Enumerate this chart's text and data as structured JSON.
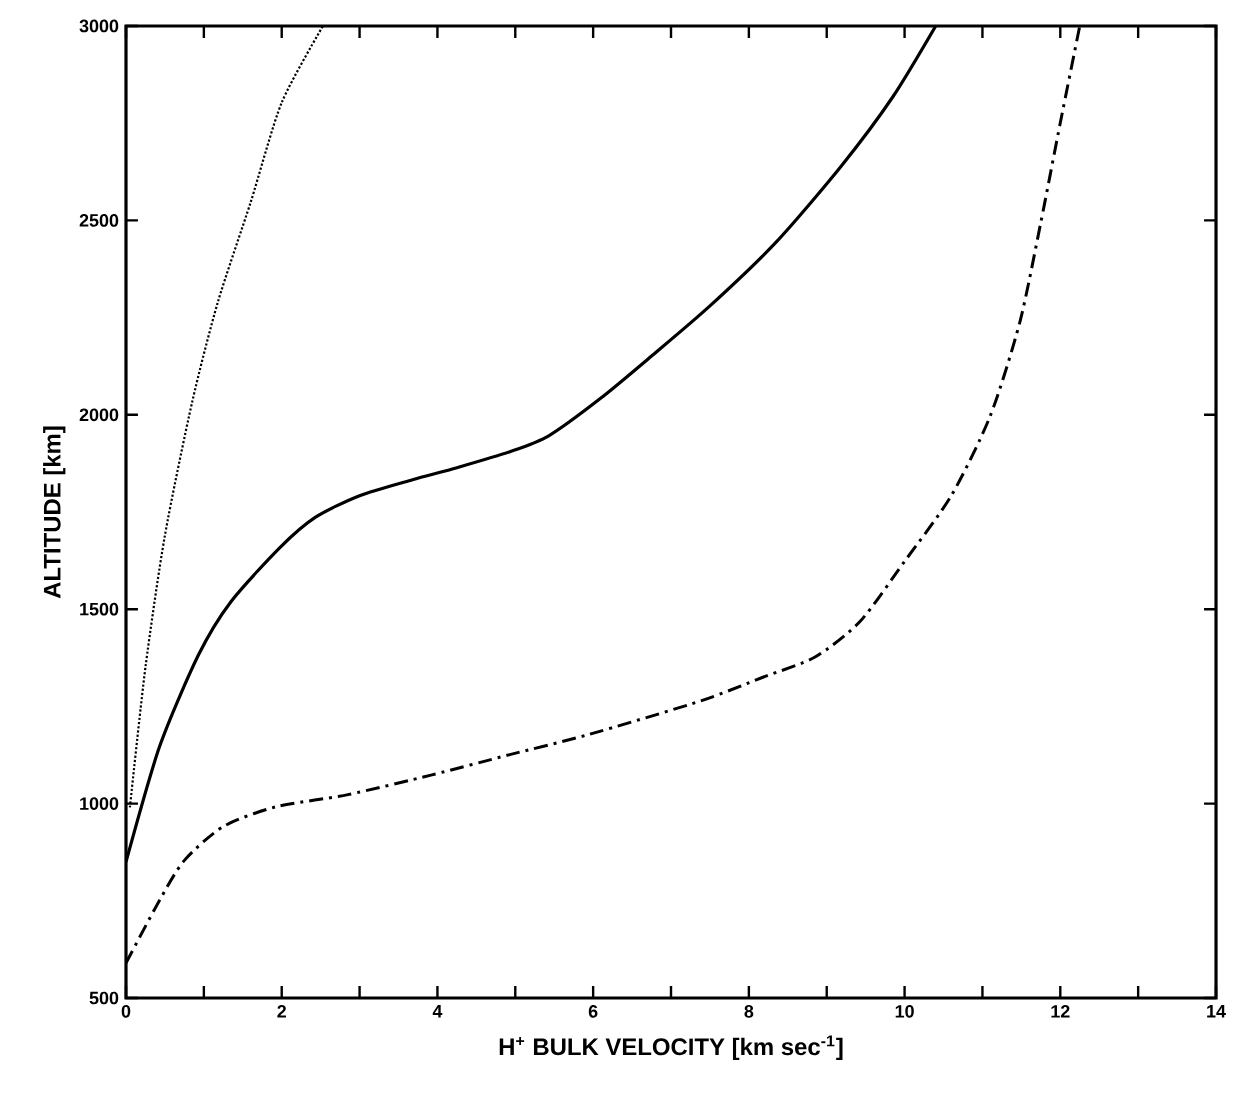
{
  "chart_data": {
    "type": "line",
    "xlabel": "H$^{+}$ BULK VELOCITY [km sec$^{-1}$]",
    "ylabel": "ALTITUDE [km]",
    "xlim": [
      0,
      14
    ],
    "ylim": [
      500,
      3000
    ],
    "xticks": [
      0,
      {
        "value": 1,
        "label": null
      },
      2,
      {
        "value": 3,
        "label": null
      },
      4,
      {
        "value": 5,
        "label": null
      },
      6,
      {
        "value": 7,
        "label": null
      },
      8,
      {
        "value": 9,
        "label": null
      },
      10,
      {
        "value": 11,
        "label": null
      },
      12,
      {
        "value": 13,
        "label": null
      },
      14
    ],
    "yticks": [
      500,
      1000,
      1500,
      2000,
      2500,
      3000
    ],
    "grid": false,
    "series": [
      {
        "color": "#000000",
        "line_style": "dotted",
        "x": [
          0.05,
          0.25,
          0.5,
          0.85,
          1.18,
          1.6,
          2.0,
          2.53
        ],
        "values": [
          990,
          1351,
          1690,
          2033,
          2290,
          2546,
          2803,
          3000
        ]
      },
      {
        "color": "#000000",
        "line_style": "solid",
        "x": [
          0,
          0.43,
          0.93,
          1.35,
          1.98,
          2.43,
          3.0,
          3.68,
          4.25,
          4.93,
          5.43,
          6.1,
          6.75,
          7.5,
          8.35,
          9.18,
          9.85,
          10.4
        ],
        "values": [
          850,
          1146,
          1382,
          1520,
          1659,
          1736,
          1792,
          1833,
          1864,
          1905,
          1946,
          2043,
          2151,
          2280,
          2444,
          2638,
          2818,
          3000
        ]
      },
      {
        "color": "#000000",
        "line_style": "dashdot",
        "x": [
          0,
          0.43,
          0.75,
          1.25,
          1.93,
          2.85,
          3.93,
          4.93,
          5.93,
          7.38,
          8.18,
          8.85,
          9.43,
          10.0,
          10.6,
          11.1,
          11.48,
          11.75,
          12.0,
          12.25
        ],
        "values": [
          590,
          751,
          854,
          941,
          992,
          1023,
          1074,
          1126,
          1177,
          1264,
          1325,
          1377,
          1469,
          1623,
          1792,
          1997,
          2238,
          2495,
          2751,
          3000
        ]
      }
    ]
  }
}
